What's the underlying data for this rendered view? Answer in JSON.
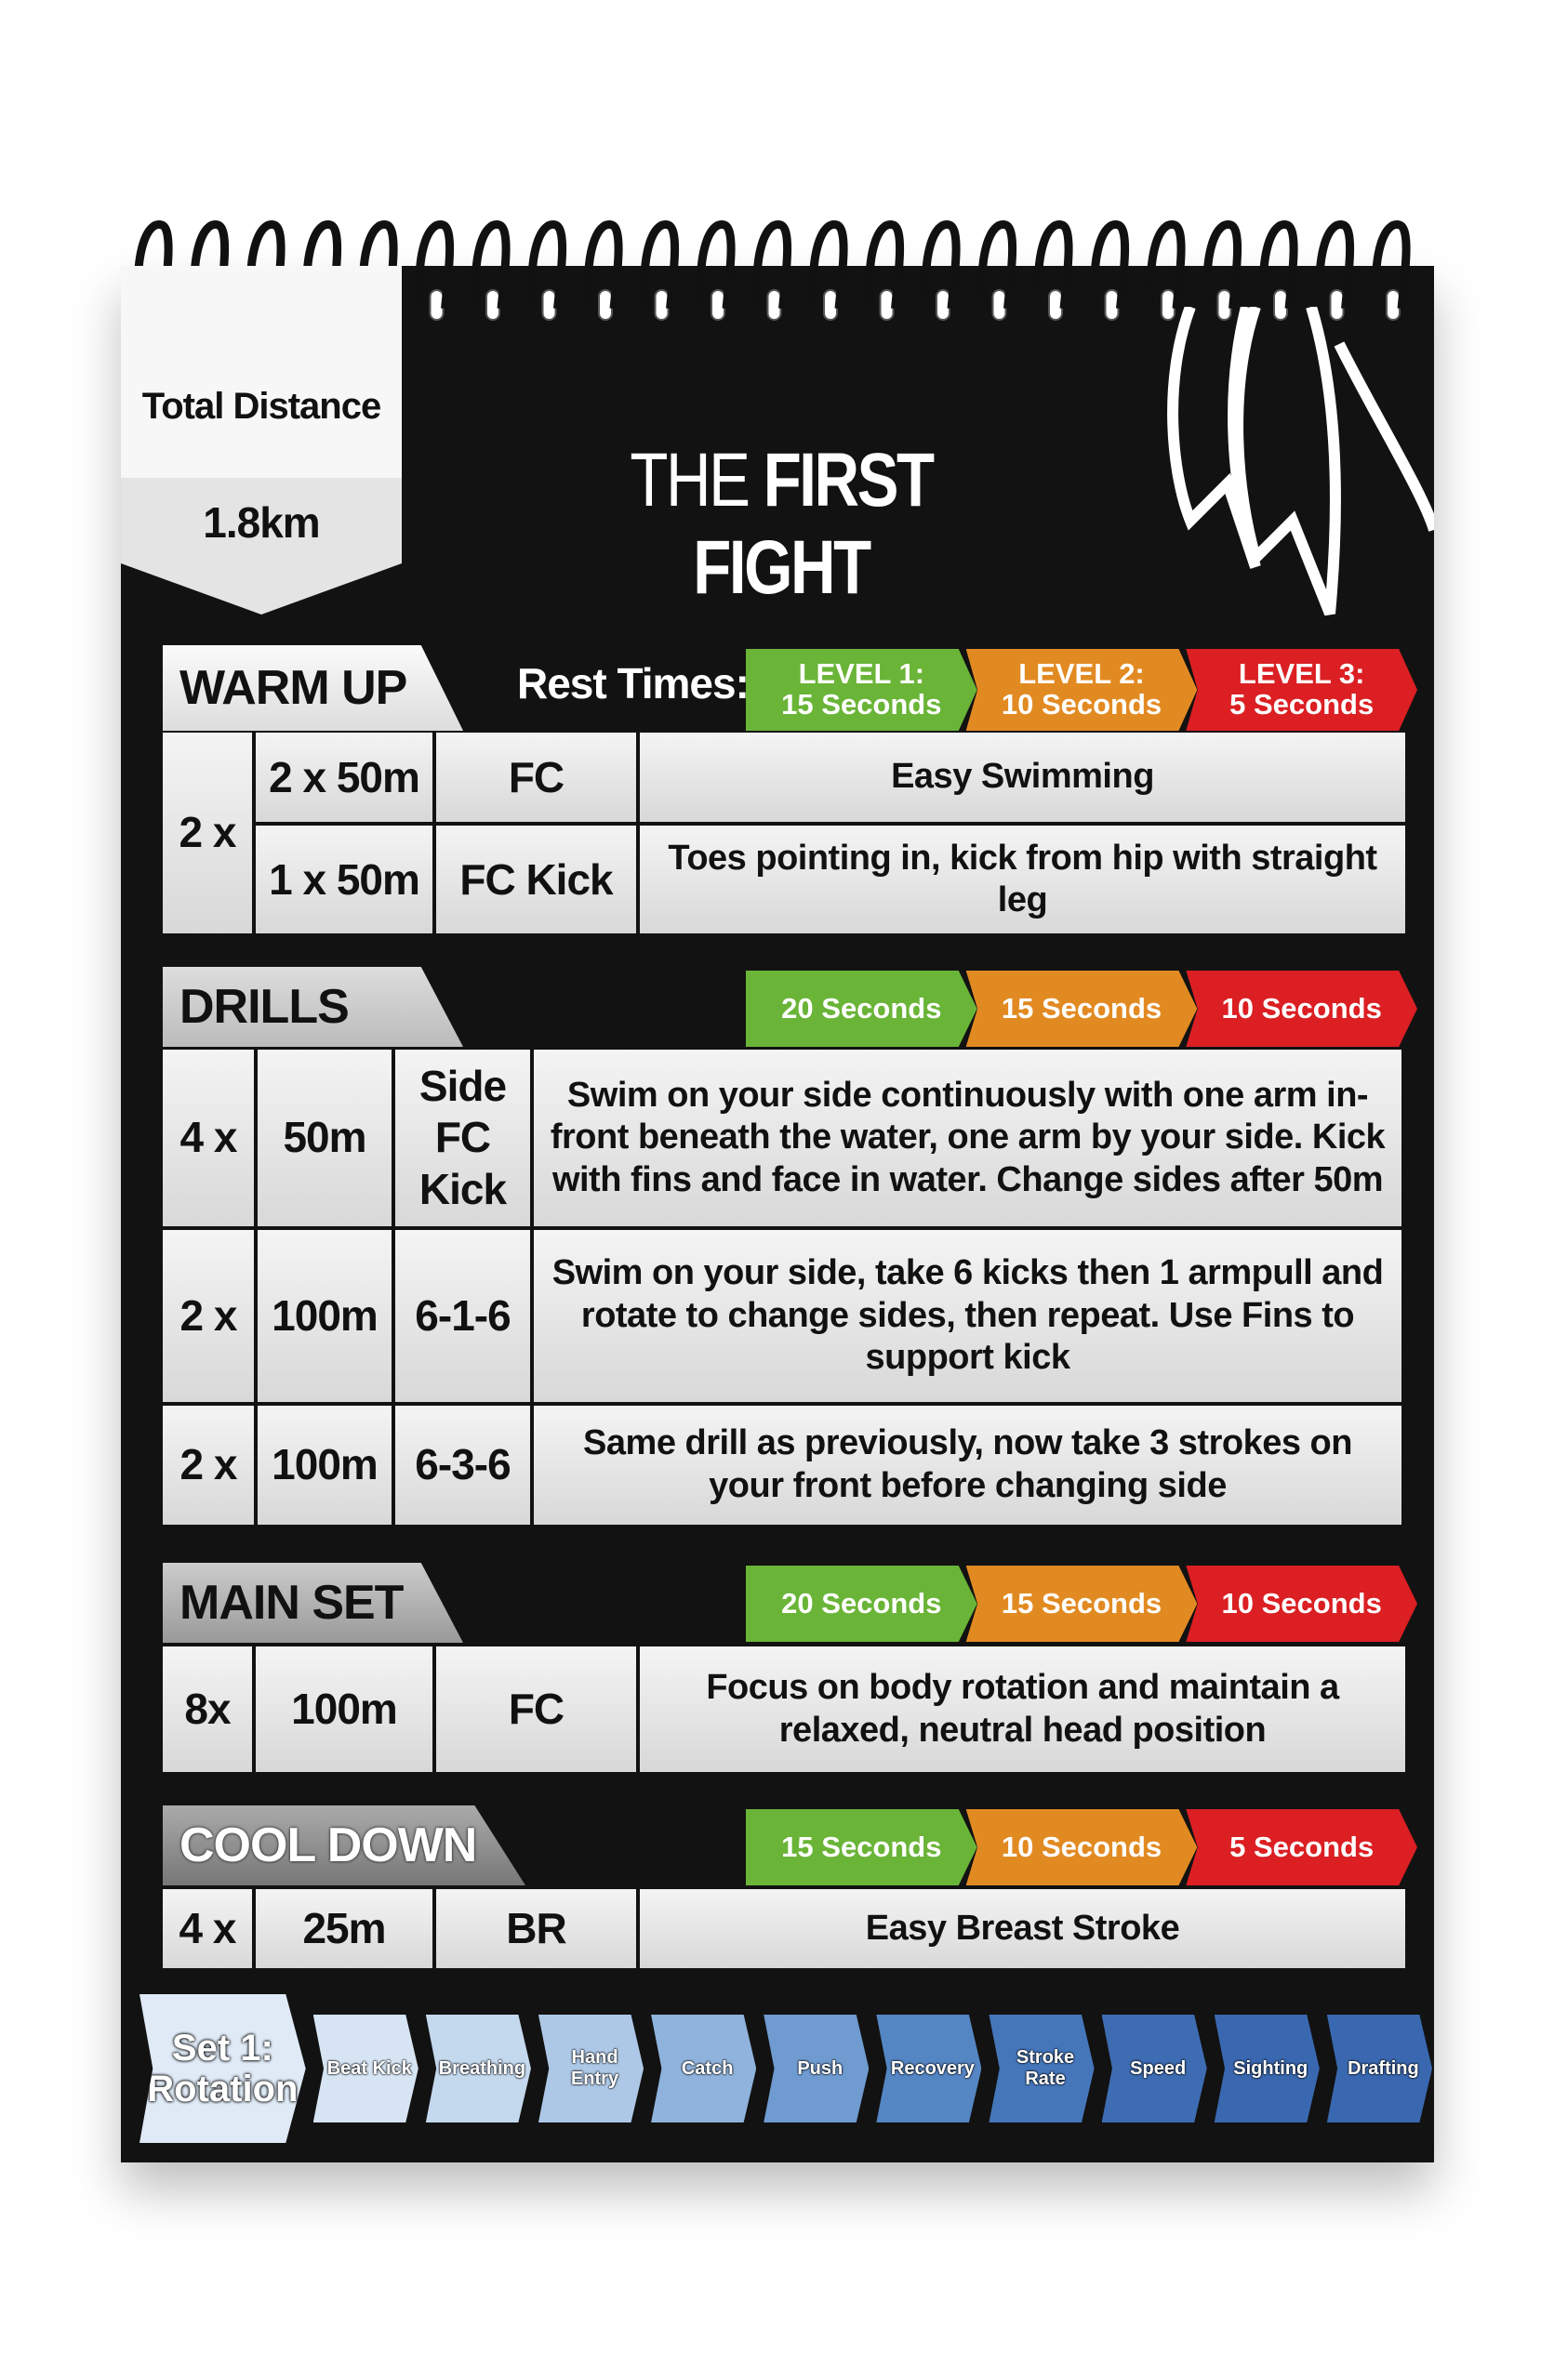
{
  "header": {
    "total_distance_label": "Total Distance",
    "total_distance": "1.8km",
    "title_light": "THE",
    "title_bold": "FIRST FIGHT"
  },
  "rest_times_label": "Rest Times:",
  "colors": {
    "level1": "#6ab437",
    "level2": "#e28a22",
    "level3": "#db1f23",
    "page": "#121212"
  },
  "sections": {
    "warm_up": {
      "title": "WARM UP",
      "levels": [
        [
          "LEVEL 1:",
          "15 Seconds"
        ],
        [
          "LEVEL 2:",
          "10 Seconds"
        ],
        [
          "LEVEL 3:",
          "5 Seconds"
        ]
      ],
      "multiplier": "2 x",
      "rows": [
        {
          "reps": "2 x 50m",
          "stroke": "FC",
          "desc": "Easy Swimming"
        },
        {
          "reps": "1 x 50m",
          "stroke": "FC Kick",
          "desc": "Toes pointing in, kick from hip with straight leg"
        }
      ]
    },
    "drills": {
      "title": "DRILLS",
      "levels": [
        "20 Seconds",
        "15 Seconds",
        "10 Seconds"
      ],
      "rows": [
        {
          "mult": "4 x",
          "dist": "50m",
          "drill": "Side FC Kick",
          "desc": "Swim on your side continuously with one arm in-front beneath the water, one arm by your side. Kick with fins and face in water. Change sides after 50m"
        },
        {
          "mult": "2 x",
          "dist": "100m",
          "drill": "6-1-6",
          "desc": "Swim on your side, take 6 kicks then 1 armpull and rotate to change sides, then repeat. Use Fins to support kick"
        },
        {
          "mult": "2 x",
          "dist": "100m",
          "drill": "6-3-6",
          "desc": "Same drill as previously, now take 3 strokes on your front before changing side"
        }
      ]
    },
    "main_set": {
      "title": "MAIN SET",
      "levels": [
        "20 Seconds",
        "15 Seconds",
        "10 Seconds"
      ],
      "mult": "8x",
      "dist": "100m",
      "stroke": "FC",
      "desc": "Focus on body rotation and maintain a relaxed, neutral head position"
    },
    "cool_down": {
      "title": "COOL DOWN",
      "levels": [
        "15 Seconds",
        "10 Seconds",
        "5 Seconds"
      ],
      "mult": "4 x",
      "dist": "25m",
      "stroke": "BR",
      "desc": "Easy Breast Stroke"
    }
  },
  "skills": {
    "current": "Set 1: Rotation",
    "items": [
      "Beat Kick",
      "Breathing",
      "Hand Entry",
      "Catch",
      "Push",
      "Recovery",
      "Stroke Rate",
      "Speed",
      "Sighting",
      "Drafting"
    ],
    "colors": [
      "#d6e4f3",
      "#c4d8ee",
      "#adc8e6",
      "#8fb3dc",
      "#6f9bd0",
      "#5586c4",
      "#4576ba",
      "#3d6cb2",
      "#3a68b0",
      "#3a68b0"
    ]
  }
}
